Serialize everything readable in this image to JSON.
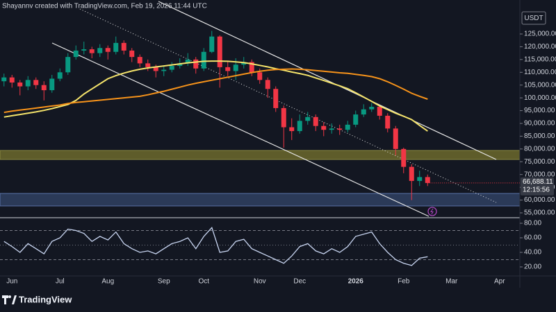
{
  "header": {
    "credit": "Shayannv created with TradingView.com, Feb 19, 2026 11:44 UTC",
    "currency": "USDT"
  },
  "brand": "TradingView",
  "chart_data": [
    {
      "type": "candlestick",
      "categories": [
        null,
        "Jun",
        null,
        null,
        null,
        null,
        null,
        "Jul",
        null,
        null,
        null,
        null,
        null,
        "Aug",
        null,
        null,
        null,
        null,
        null,
        null,
        "Sep",
        null,
        null,
        null,
        null,
        "Oct",
        null,
        null,
        null,
        null,
        null,
        null,
        "Nov",
        null,
        null,
        null,
        null,
        "Dec",
        null,
        null,
        null,
        null,
        null,
        null,
        "2026",
        null,
        null,
        null,
        null,
        null,
        "Feb",
        null,
        null,
        null,
        null,
        null,
        "Mar",
        null,
        null,
        null,
        null,
        null,
        "Apr",
        null,
        null
      ],
      "open": [
        106500,
        108000,
        106000,
        104500,
        107000,
        105000,
        103000,
        107500,
        110000,
        116000,
        118500,
        119000,
        117500,
        119500,
        118000,
        121500,
        118500,
        116000,
        113500,
        112000,
        110500,
        111000,
        112500,
        113500,
        115000,
        111500,
        118000,
        124000,
        112000,
        110500,
        113000,
        114000,
        110000,
        107000,
        103500,
        96000,
        88500,
        87000,
        91000,
        92500,
        89000,
        87500,
        88000,
        87500,
        89500,
        93500,
        95500,
        96500,
        93000,
        88000,
        80000,
        73000,
        67500,
        69000,
        null,
        null,
        null,
        null,
        null,
        null,
        null,
        null,
        null,
        null,
        null
      ],
      "high": [
        109500,
        109000,
        107000,
        108500,
        108000,
        106500,
        109000,
        111500,
        117500,
        120500,
        122000,
        120000,
        121000,
        120500,
        124000,
        122500,
        119500,
        117000,
        115000,
        113000,
        112500,
        114000,
        115500,
        117500,
        116000,
        119500,
        126200,
        124500,
        114500,
        115500,
        116000,
        115000,
        111500,
        108000,
        104500,
        97000,
        92000,
        93500,
        94500,
        93500,
        90500,
        90000,
        89500,
        91000,
        95000,
        97500,
        98000,
        97000,
        94000,
        89000,
        80500,
        74000,
        71500,
        70000,
        null,
        null,
        null,
        null,
        null,
        null,
        null,
        null,
        null,
        null,
        null
      ],
      "low": [
        104500,
        104000,
        101000,
        103000,
        103500,
        99000,
        102000,
        106500,
        109000,
        115000,
        117000,
        115500,
        116000,
        115000,
        117000,
        117000,
        114000,
        112000,
        110500,
        108000,
        108500,
        110000,
        111500,
        112500,
        109500,
        110500,
        117500,
        104000,
        108500,
        107000,
        111500,
        108500,
        105500,
        100000,
        94500,
        80500,
        83500,
        86000,
        89500,
        87000,
        85000,
        86000,
        85500,
        86500,
        88500,
        92500,
        94500,
        91500,
        86500,
        77500,
        70500,
        60000,
        65500,
        65500,
        null,
        null,
        null,
        null,
        null,
        null,
        null,
        null,
        null,
        null,
        null
      ],
      "close": [
        108000,
        106000,
        104500,
        107000,
        105000,
        103000,
        107500,
        110000,
        116000,
        118500,
        119000,
        117500,
        119500,
        118000,
        121500,
        118500,
        116000,
        113500,
        112000,
        110500,
        111000,
        112500,
        113500,
        115000,
        111500,
        118000,
        124000,
        112000,
        110500,
        113000,
        114000,
        110000,
        107000,
        103500,
        96000,
        88500,
        87000,
        91000,
        92500,
        89000,
        87500,
        88000,
        87500,
        89500,
        93500,
        95500,
        96500,
        93000,
        88000,
        80000,
        73000,
        67500,
        69000,
        66688.11,
        null,
        null,
        null,
        null,
        null,
        null,
        null,
        null,
        null,
        null,
        null
      ],
      "last_label": "66,688.11",
      "countdown": "12:15:56",
      "colors": {
        "up": "#089981",
        "down": "#f23645"
      },
      "lines": [
        {
          "color": "#f5e46b",
          "values": [
            92500,
            93000,
            93500,
            94000,
            94500,
            95100,
            95800,
            96600,
            97400,
            99000,
            101500,
            103500,
            105500,
            107500,
            108700,
            109700,
            110500,
            111200,
            111700,
            112100,
            112500,
            112900,
            113300,
            113700,
            114000,
            114300,
            114400,
            114400,
            114300,
            114100,
            113800,
            113300,
            112700,
            112100,
            111400,
            110800,
            110100,
            109500,
            108800,
            107800,
            106800,
            105700,
            104700,
            103600,
            102000,
            100300,
            98600,
            96800,
            95400,
            94000,
            92800,
            91500,
            89200,
            87000,
            null,
            null,
            null,
            null,
            null,
            null,
            null,
            null,
            null,
            null,
            null
          ]
        },
        {
          "color": "#f7931a",
          "values": [
            94300,
            94800,
            95200,
            95600,
            96000,
            96400,
            96800,
            97200,
            97800,
            98200,
            98500,
            98800,
            99100,
            99400,
            99700,
            100000,
            100300,
            100600,
            101200,
            101900,
            102600,
            103400,
            104200,
            105000,
            105700,
            106300,
            106900,
            107500,
            108100,
            108700,
            109300,
            109900,
            110400,
            110800,
            111100,
            111200,
            111300,
            111200,
            111000,
            110700,
            110400,
            110100,
            109800,
            109600,
            109200,
            108800,
            108300,
            107500,
            106300,
            104900,
            103400,
            101800,
            100600,
            99500,
            null,
            null,
            null,
            null,
            null,
            null,
            null,
            null,
            null,
            null,
            null
          ]
        }
      ],
      "ylim": [
        53644,
        138293
      ],
      "yticks": [
        {
          "value": 55000,
          "label": "55,000.00"
        },
        {
          "value": 60000,
          "label": "60,000.00"
        },
        {
          "value": 65000,
          "label": "65,000.00"
        },
        {
          "value": 70000,
          "label": "70,000.00"
        },
        {
          "value": 75000,
          "label": "75,000.00"
        },
        {
          "value": 80000,
          "label": "80,000.00"
        },
        {
          "value": 85000,
          "label": "85,000.00"
        },
        {
          "value": 90000,
          "label": "90,000.00"
        },
        {
          "value": 95000,
          "label": "95,000.00"
        },
        {
          "value": 100000,
          "label": "100,000.00"
        },
        {
          "value": 105000,
          "label": "105,000.00"
        },
        {
          "value": 110000,
          "label": "110,000.00"
        },
        {
          "value": 115000,
          "label": "115,000.00"
        },
        {
          "value": 120000,
          "label": "120,000.00"
        },
        {
          "value": 125000,
          "label": "125,000.00"
        }
      ]
    },
    {
      "type": "line",
      "color": "#c9d6f2",
      "values": [
        55,
        48,
        40,
        52,
        45,
        38,
        55,
        60,
        72,
        70,
        66,
        55,
        62,
        57,
        68,
        52,
        45,
        40,
        42,
        38,
        45,
        52,
        55,
        60,
        45,
        62,
        74,
        40,
        42,
        55,
        58,
        45,
        40,
        35,
        30,
        25,
        35,
        48,
        52,
        42,
        38,
        45,
        40,
        48,
        62,
        65,
        68,
        52,
        40,
        30,
        25,
        22,
        32,
        34,
        null,
        null,
        null,
        null,
        null,
        null,
        null,
        null,
        null,
        null,
        null
      ],
      "ylim": [
        7.6,
        85.7
      ],
      "yticks": [
        {
          "value": 20,
          "label": "20.00"
        },
        {
          "value": 40,
          "label": "40.00"
        },
        {
          "value": 60,
          "label": "60.00"
        },
        {
          "value": 80,
          "label": "80.00"
        }
      ],
      "levels": [
        70,
        50,
        30
      ]
    }
  ]
}
